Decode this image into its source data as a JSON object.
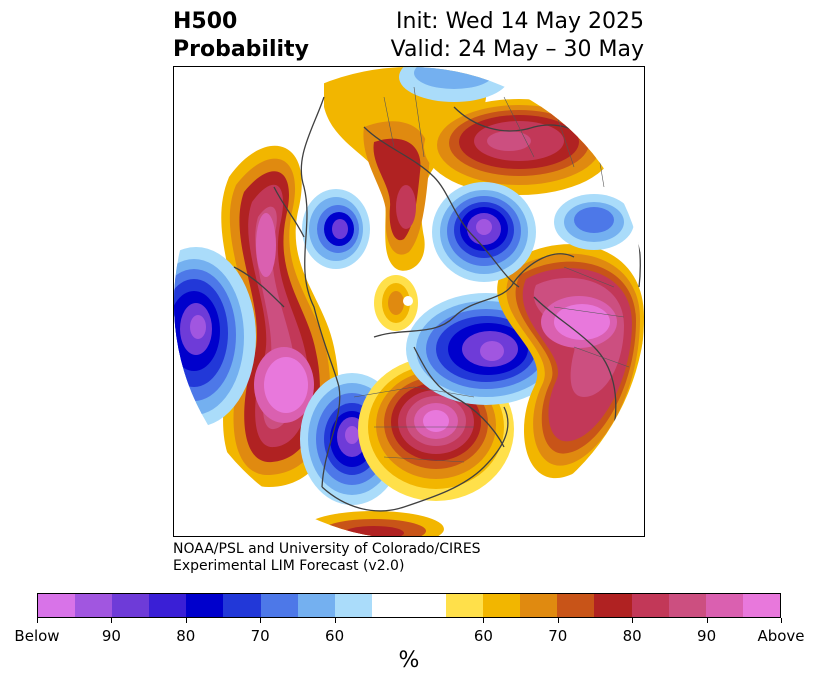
{
  "title": {
    "left_line1": "H500",
    "left_line2": "Probability",
    "right_line1": "Init: Wed 14 May 2025",
    "right_line2": "Valid: 24 May – 30 May"
  },
  "credit": {
    "line1": "NOAA/PSL and University of Colorado/CIRES",
    "line2": "Experimental LIM Forecast (v2.0)"
  },
  "colorbar": {
    "colors": [
      "#d873e8",
      "#a156e0",
      "#6e3bd8",
      "#3a1fd6",
      "#0000cc",
      "#2238d8",
      "#4d78e8",
      "#74b0f0",
      "#aadcfa",
      "#ffffff",
      "#ffffff",
      "#ffe04a",
      "#f2b600",
      "#e08a10",
      "#c85418",
      "#b02222",
      "#c23858",
      "#cc4f80",
      "#da60b0",
      "#e878dc"
    ],
    "tick_labels": [
      "Below",
      "90",
      "80",
      "70",
      "60",
      "60",
      "70",
      "80",
      "90",
      "Above"
    ],
    "unit_label": "%"
  }
}
